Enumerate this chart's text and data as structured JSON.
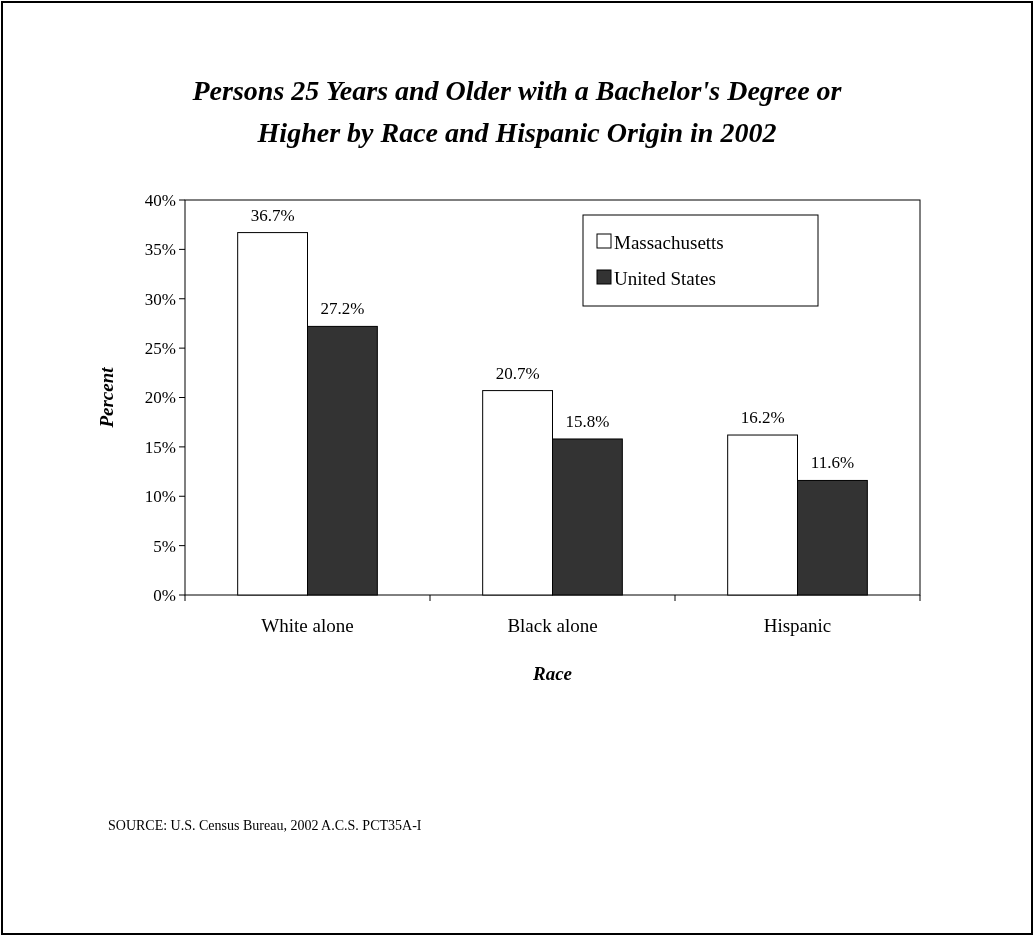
{
  "chart_data": {
    "type": "bar",
    "title": "Persons 25 Years and Older with a Bachelor's Degree or Higher by Race and Hispanic Origin in 2002",
    "xlabel": "Race",
    "ylabel": "Percent",
    "categories": [
      "White alone",
      "Black alone",
      "Hispanic"
    ],
    "series": [
      {
        "name": "Massachusetts",
        "color": "#ffffff",
        "values": [
          36.7,
          20.7,
          16.2
        ],
        "value_labels": [
          "36.7%",
          "20.7%",
          "16.2%"
        ]
      },
      {
        "name": "United States",
        "color": "#333333",
        "values": [
          27.2,
          15.8,
          11.6
        ],
        "value_labels": [
          "27.2%",
          "15.8%",
          "11.6%"
        ]
      }
    ],
    "ylim": [
      0,
      40
    ],
    "yticks": [
      {
        "value": 0,
        "label": "0%"
      },
      {
        "value": 5,
        "label": "5%"
      },
      {
        "value": 10,
        "label": "10%"
      },
      {
        "value": 15,
        "label": "15%"
      },
      {
        "value": 20,
        "label": "20%"
      },
      {
        "value": 25,
        "label": "25%"
      },
      {
        "value": 30,
        "label": "30%"
      },
      {
        "value": 35,
        "label": "35%"
      },
      {
        "value": 40,
        "label": "40%"
      }
    ],
    "grid": false,
    "legend": "top right",
    "annotations": [
      "SOURCE: U.S. Census Bureau, 2002 A.C.S. PCT35A-I"
    ]
  }
}
